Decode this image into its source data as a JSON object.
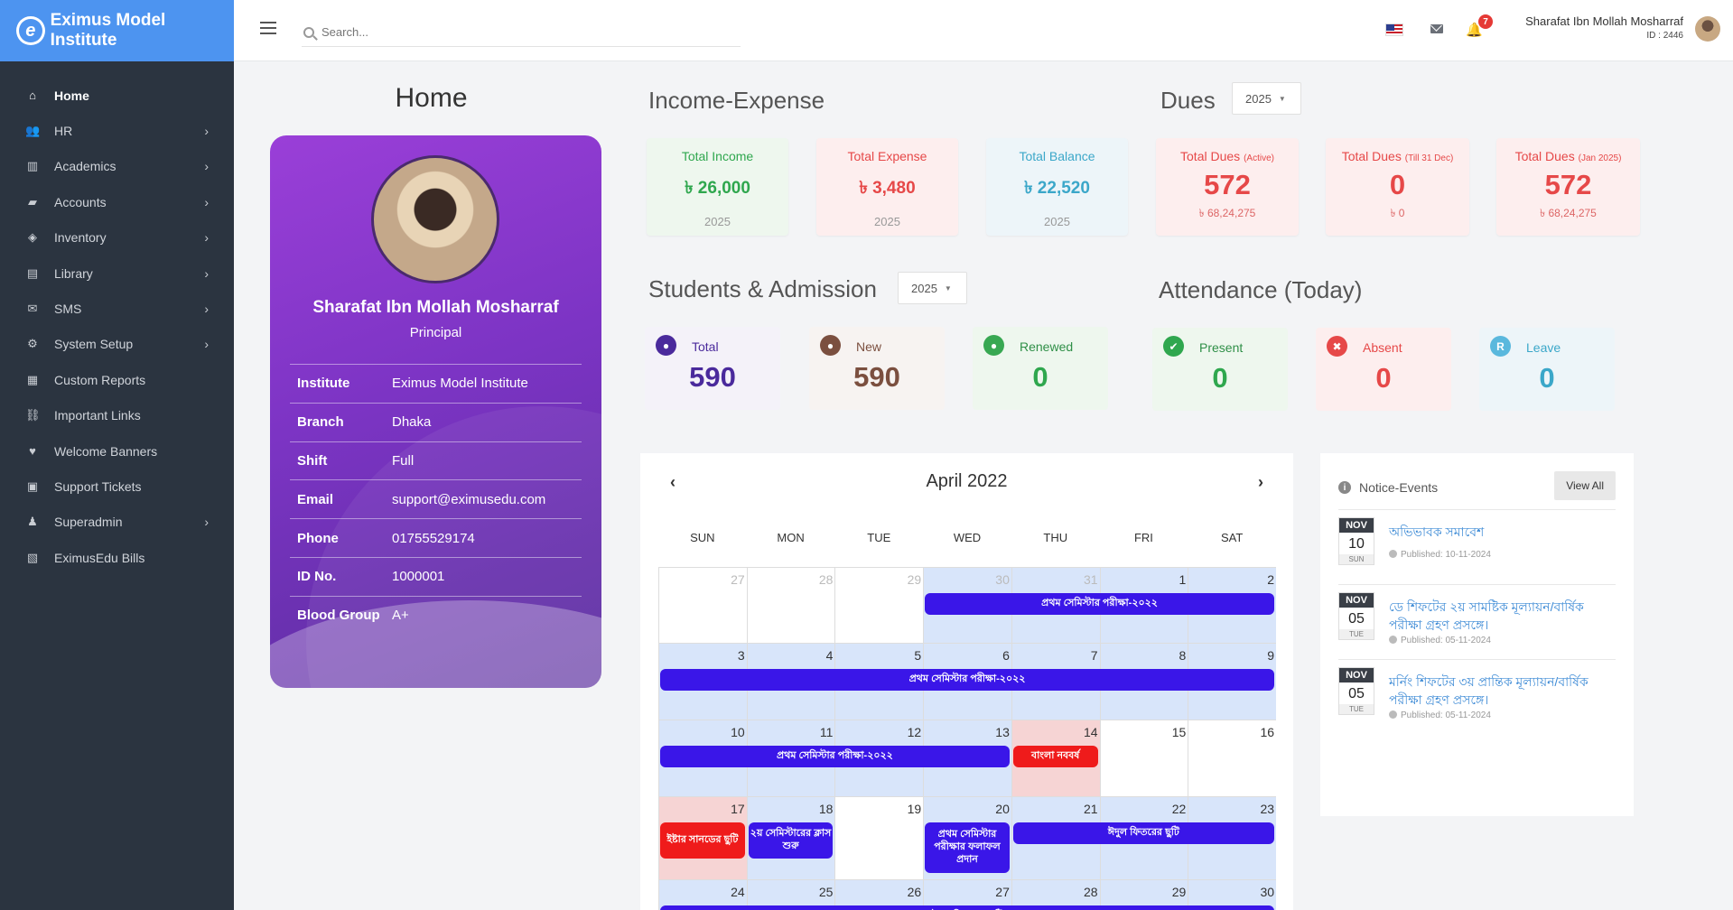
{
  "brand": {
    "name": "Eximus Model Institute",
    "logo_letter": "e"
  },
  "sidebar": {
    "items": [
      {
        "label": "Home",
        "icon": "home-icon",
        "glyph": "⌂",
        "has_sub": false,
        "active": true
      },
      {
        "label": "HR",
        "icon": "users-icon",
        "glyph": "👥",
        "has_sub": true
      },
      {
        "label": "Academics",
        "icon": "school-icon",
        "glyph": "▥",
        "has_sub": true
      },
      {
        "label": "Accounts",
        "icon": "folder-icon",
        "glyph": "▰",
        "has_sub": true
      },
      {
        "label": "Inventory",
        "icon": "boxes-icon",
        "glyph": "◈",
        "has_sub": true
      },
      {
        "label": "Library",
        "icon": "book-icon",
        "glyph": "▤",
        "has_sub": true
      },
      {
        "label": "SMS",
        "icon": "sms-icon",
        "glyph": "✉",
        "has_sub": true
      },
      {
        "label": "System Setup",
        "icon": "cogs-icon",
        "glyph": "⚙",
        "has_sub": true
      },
      {
        "label": "Custom Reports",
        "icon": "report-icon",
        "glyph": "▦",
        "has_sub": false
      },
      {
        "label": "Important Links",
        "icon": "link-icon",
        "glyph": "⛓",
        "has_sub": false
      },
      {
        "label": "Welcome Banners",
        "icon": "banner-icon",
        "glyph": "♥",
        "has_sub": false
      },
      {
        "label": "Support Tickets",
        "icon": "ticket-icon",
        "glyph": "▣",
        "has_sub": false
      },
      {
        "label": "Superadmin",
        "icon": "admin-icon",
        "glyph": "♟",
        "has_sub": true
      },
      {
        "label": "EximusEdu Bills",
        "icon": "bill-icon",
        "glyph": "▧",
        "has_sub": false
      }
    ],
    "chevron": "›"
  },
  "topbar": {
    "search_placeholder": "Search...",
    "notification_count": "7",
    "user_name": "Sharafat Ibn Mollah Mosharraf",
    "user_id": "ID : 2446"
  },
  "home": {
    "title": "Home",
    "profile": {
      "name": "Sharafat Ibn Mollah Mosharraf",
      "role": "Principal",
      "rows": [
        {
          "k": "Institute",
          "v": "Eximus Model Institute"
        },
        {
          "k": "Branch",
          "v": "Dhaka"
        },
        {
          "k": "Shift",
          "v": "Full"
        },
        {
          "k": "Email",
          "v": "support@eximusedu.com"
        },
        {
          "k": "Phone",
          "v": "01755529174"
        },
        {
          "k": "ID No.",
          "v": "1000001"
        },
        {
          "k": "Blood Group",
          "v": "A+"
        }
      ]
    }
  },
  "income_expense": {
    "title": "Income-Expense",
    "cards": [
      {
        "label": "Total Income",
        "value": "৳ 26,000",
        "sub": "2025"
      },
      {
        "label": "Total Expense",
        "value": "৳ 3,480",
        "sub": "2025"
      },
      {
        "label": "Total Balance",
        "value": "৳ 22,520",
        "sub": "2025"
      }
    ]
  },
  "dues": {
    "title": "Dues",
    "year": "2025",
    "cards": [
      {
        "label": "Total Dues",
        "note": "(Active)",
        "value": "572",
        "sub": "৳ 68,24,275"
      },
      {
        "label": "Total Dues",
        "note": "(Till 31 Dec)",
        "value": "0",
        "sub": "৳ 0"
      },
      {
        "label": "Total Dues",
        "note": "(Jan 2025)",
        "value": "572",
        "sub": "৳ 68,24,275"
      }
    ]
  },
  "students": {
    "title": "Students & Admission",
    "year": "2025",
    "cards": [
      {
        "label": "Total",
        "value": "590"
      },
      {
        "label": "New",
        "value": "590"
      },
      {
        "label": "Renewed",
        "value": "0"
      }
    ]
  },
  "attendance": {
    "title": "Attendance (Today)",
    "cards": [
      {
        "label": "Present",
        "value": "0",
        "glyph": "✔"
      },
      {
        "label": "Absent",
        "value": "0",
        "glyph": "✖"
      },
      {
        "label": "Leave",
        "value": "0",
        "glyph": "R"
      }
    ]
  },
  "calendar": {
    "month": "April 2022",
    "prev": "‹",
    "next": "›",
    "weekdays": [
      "SUN",
      "MON",
      "TUE",
      "WED",
      "THU",
      "FRI",
      "SAT"
    ],
    "weeks": [
      [
        "27",
        "28",
        "29",
        "30",
        "31",
        "1",
        "2"
      ],
      [
        "3",
        "4",
        "5",
        "6",
        "7",
        "8",
        "9"
      ],
      [
        "10",
        "11",
        "12",
        "13",
        "14",
        "15",
        "16"
      ],
      [
        "17",
        "18",
        "19",
        "20",
        "21",
        "22",
        "23"
      ],
      [
        "24",
        "25",
        "26",
        "27",
        "28",
        "29",
        "30"
      ]
    ],
    "events": {
      "exam": "প্রথম সেমিস্টার পরীক্ষা-২০২২",
      "new_year": "বাংলা নববর্ষ",
      "easter": "ইষ্টার সানডের ছুটি",
      "second_sem": "২য় সেমিস্টারের ক্লাস শুরু",
      "result": "প্রথম সেমিস্টার পরীক্ষার ফলাফল প্রদান",
      "eid": "ঈদুল ফিতরের ছুটি"
    }
  },
  "notices": {
    "title": "Notice-Events",
    "view_all": "View All",
    "items": [
      {
        "month": "NOV",
        "day": "10",
        "weekday": "SUN",
        "title": "অভিভাবক সমাবেশ",
        "published": "Published: 10-11-2024"
      },
      {
        "month": "NOV",
        "day": "05",
        "weekday": "TUE",
        "title": "ডে শিফটের ২য় সামষ্টিক মূল্যায়ন/বার্ষিক পরীক্ষা গ্রহণ প্রসঙ্গে।",
        "published": "Published: 05-11-2024"
      },
      {
        "month": "NOV",
        "day": "05",
        "weekday": "TUE",
        "title": "মর্নিং শিফটের ৩য় প্রান্তিক মূল্যায়ন/বার্ষিক পরীক্ষা গ্রহণ প্রসঙ্গে।",
        "published": "Published: 05-11-2024"
      }
    ]
  },
  "colors": {
    "sidebar": "#2b3440",
    "brand": "#4d94f0",
    "event": "#3a16e8",
    "event_red": "#ef1b1b",
    "profile": "#7c34c4"
  }
}
